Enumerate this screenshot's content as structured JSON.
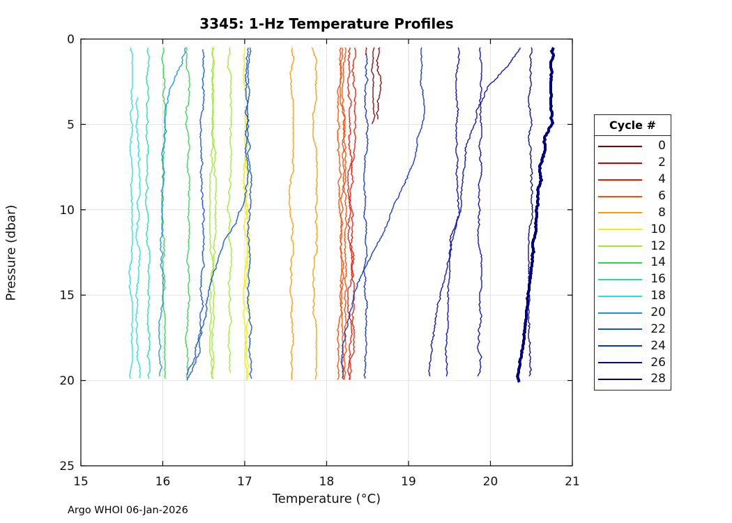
{
  "figure": {
    "footer": "Argo WHOI 06-Jan-2026"
  },
  "chart_data": {
    "type": "line",
    "title": "3345: 1-Hz Temperature Profiles",
    "xlabel": "Temperature (°C)",
    "ylabel": "Pressure (dbar)",
    "xlim": [
      15,
      21
    ],
    "ylim": [
      0,
      25
    ],
    "y_inverted": true,
    "grid": true,
    "xticks": [
      15,
      16,
      17,
      18,
      19,
      20,
      21
    ],
    "yticks": [
      0,
      5,
      10,
      15,
      20,
      25
    ],
    "legend_title": "Cycle #",
    "legend_position": "outside-right",
    "series_note": "points are [pressure_dbar, temperature_C]; each cycle may have several casts",
    "series": [
      {
        "label": "0",
        "color": "#800000",
        "casts": [
          {
            "points": [
              [
                0.5,
                18.585
              ],
              [
                1.8,
                18.575
              ],
              [
                3.2,
                18.59
              ],
              [
                5.0,
                18.58
              ]
            ]
          },
          {
            "points": [
              [
                0.5,
                18.645
              ],
              [
                1.6,
                18.62
              ],
              [
                2.4,
                18.655
              ],
              [
                3.4,
                18.62
              ],
              [
                4.7,
                18.635
              ]
            ]
          }
        ]
      },
      {
        "label": "2",
        "color": "#C80000",
        "casts": [
          {
            "points": [
              [
                0.5,
                18.48
              ],
              [
                0.95,
                18.48
              ]
            ]
          }
        ]
      },
      {
        "label": "4",
        "color": "#F01400",
        "casts": [
          {
            "points": [
              [
                0.5,
                18.285
              ],
              [
                20,
                18.285
              ]
            ]
          },
          {
            "points": [
              [
                0.5,
                18.335
              ],
              [
                1.9,
                18.31
              ],
              [
                2.3,
                18.335
              ],
              [
                6.2,
                18.325
              ],
              [
                7.4,
                18.3
              ],
              [
                15.2,
                18.315
              ],
              [
                20,
                18.305
              ]
            ]
          }
        ]
      },
      {
        "label": "6",
        "color": "#FF4A00",
        "casts": [
          {
            "points": [
              [
                0.5,
                18.16
              ],
              [
                20,
                18.16
              ]
            ]
          },
          {
            "points": [
              [
                0.5,
                18.19
              ],
              [
                3.4,
                18.17
              ],
              [
                4.1,
                18.2
              ],
              [
                13.6,
                18.185
              ],
              [
                15.8,
                18.165
              ],
              [
                20,
                18.19
              ]
            ]
          },
          {
            "points": [
              [
                0.5,
                18.215
              ],
              [
                20,
                18.215
              ]
            ]
          }
        ]
      },
      {
        "label": "8",
        "color": "#FF9900",
        "casts": [
          {
            "points": [
              [
                0.5,
                17.575
              ],
              [
                1.1,
                17.59
              ],
              [
                3.0,
                17.57
              ],
              [
                20,
                17.575
              ]
            ]
          },
          {
            "points": [
              [
                0.5,
                17.815
              ],
              [
                1.1,
                17.85
              ],
              [
                10,
                17.86
              ],
              [
                20,
                17.855
              ]
            ]
          }
        ]
      },
      {
        "label": "10",
        "color": "#F0F000",
        "casts": [
          {
            "points": [
              [
                0.5,
                17.01
              ],
              [
                20,
                17.005
              ]
            ]
          },
          {
            "points": [
              [
                6.0,
                17.035
              ],
              [
                20,
                17.03
              ]
            ]
          }
        ]
      },
      {
        "label": "12",
        "color": "#9FE82E",
        "casts": [
          {
            "points": [
              [
                0.5,
                16.595
              ],
              [
                19.9,
                16.595
              ]
            ]
          },
          {
            "points": [
              [
                0.5,
                16.625
              ],
              [
                19.9,
                16.625
              ]
            ]
          },
          {
            "points": [
              [
                0.5,
                16.815
              ],
              [
                19.6,
                16.815
              ]
            ]
          }
        ]
      },
      {
        "label": "14",
        "color": "#33D24E",
        "casts": [
          {
            "points": [
              [
                0.5,
                16.01
              ],
              [
                19.95,
                16.01
              ]
            ]
          },
          {
            "points": [
              [
                0.5,
                16.3
              ],
              [
                19.9,
                16.3
              ]
            ]
          }
        ]
      },
      {
        "label": "16",
        "color": "#21E096",
        "casts": [
          {
            "points": [
              [
                0.5,
                15.815
              ],
              [
                19.9,
                15.815
              ]
            ]
          }
        ]
      },
      {
        "label": "18",
        "color": "#21E0E0",
        "casts": [
          {
            "points": [
              [
                0.5,
                15.61
              ],
              [
                19.9,
                15.61
              ]
            ]
          },
          {
            "points": [
              [
                3.4,
                15.7
              ],
              [
                19.9,
                15.7
              ]
            ]
          }
        ]
      },
      {
        "label": "20",
        "color": "#1394DC",
        "casts": [
          {
            "points": [
              [
                0.5,
                16.28
              ],
              [
                1.4,
                16.22
              ],
              [
                2.0,
                16.155
              ],
              [
                2.9,
                16.1
              ],
              [
                3.8,
                16.065
              ],
              [
                6.0,
                16.02
              ],
              [
                7.5,
                16.0
              ],
              [
                9.0,
                15.985
              ],
              [
                19.8,
                15.975
              ]
            ]
          }
        ]
      },
      {
        "label": "22",
        "color": "#1452DC",
        "casts": [
          {
            "points": [
              [
                0.6,
                16.48
              ],
              [
                17.2,
                16.48
              ],
              [
                18.2,
                16.45
              ],
              [
                19.0,
                16.4
              ],
              [
                19.6,
                16.33
              ],
              [
                20.0,
                16.29
              ]
            ]
          },
          {
            "points": [
              [
                0.5,
                17.035
              ],
              [
                8.0,
                17.03
              ],
              [
                8.9,
                17.01
              ],
              [
                10.0,
                16.94
              ],
              [
                11.2,
                16.84
              ],
              [
                11.9,
                16.73
              ],
              [
                14.0,
                16.62
              ],
              [
                17.0,
                16.47
              ],
              [
                19.0,
                16.35
              ],
              [
                19.7,
                16.3
              ]
            ]
          },
          {
            "points": [
              [
                0.5,
                17.06
              ],
              [
                19.9,
                17.06
              ]
            ]
          }
        ]
      },
      {
        "label": "24",
        "color": "#0A32C8",
        "casts": [
          {
            "points": [
              [
                0.85,
                18.48
              ],
              [
                19.9,
                18.48
              ]
            ]
          },
          {
            "points": [
              [
                0.5,
                19.175
              ],
              [
                5.0,
                19.17
              ],
              [
                5.4,
                19.14
              ],
              [
                7.0,
                19.1
              ],
              [
                8.5,
                18.97
              ],
              [
                9.7,
                18.845
              ],
              [
                11.3,
                18.72
              ],
              [
                12.8,
                18.555
              ],
              [
                14.2,
                18.41
              ],
              [
                16.0,
                18.28
              ],
              [
                17.6,
                18.2
              ],
              [
                18.3,
                18.18
              ],
              [
                19.9,
                18.18
              ]
            ]
          }
        ]
      },
      {
        "label": "26",
        "color": "#0505B4",
        "casts": [
          {
            "points": [
              [
                0.5,
                19.6
              ],
              [
                10.2,
                19.6
              ],
              [
                12.0,
                19.5
              ],
              [
                15.7,
                19.46
              ],
              [
                19.8,
                19.45
              ]
            ]
          },
          {
            "points": [
              [
                0.5,
                19.87
              ],
              [
                19.8,
                19.87
              ]
            ]
          },
          {
            "points": [
              [
                0.5,
                20.365
              ],
              [
                1.5,
                20.25
              ],
              [
                2.7,
                20.0
              ],
              [
                4.0,
                19.855
              ],
              [
                5.7,
                19.74
              ],
              [
                7.0,
                19.69
              ],
              [
                8.7,
                19.65
              ],
              [
                10.0,
                19.615
              ],
              [
                15.0,
                19.37
              ],
              [
                19.8,
                19.25
              ]
            ]
          }
        ]
      },
      {
        "label": "28",
        "color": "#000082",
        "casts": [
          {
            "points": [
              [
                0.5,
                20.49
              ],
              [
                19.8,
                20.49
              ]
            ]
          },
          {
            "thick": true,
            "points": [
              [
                0.5,
                20.76
              ],
              [
                3.8,
                20.76
              ],
              [
                5.0,
                20.755
              ],
              [
                5.7,
                20.68
              ],
              [
                6.5,
                20.665
              ],
              [
                7.3,
                20.63
              ],
              [
                9.3,
                20.59
              ],
              [
                11.7,
                20.55
              ],
              [
                13.4,
                20.48
              ],
              [
                14.9,
                20.44
              ],
              [
                16.1,
                20.42
              ],
              [
                17.0,
                20.4
              ],
              [
                18.2,
                20.38
              ],
              [
                20.1,
                20.345
              ]
            ]
          }
        ]
      }
    ]
  }
}
